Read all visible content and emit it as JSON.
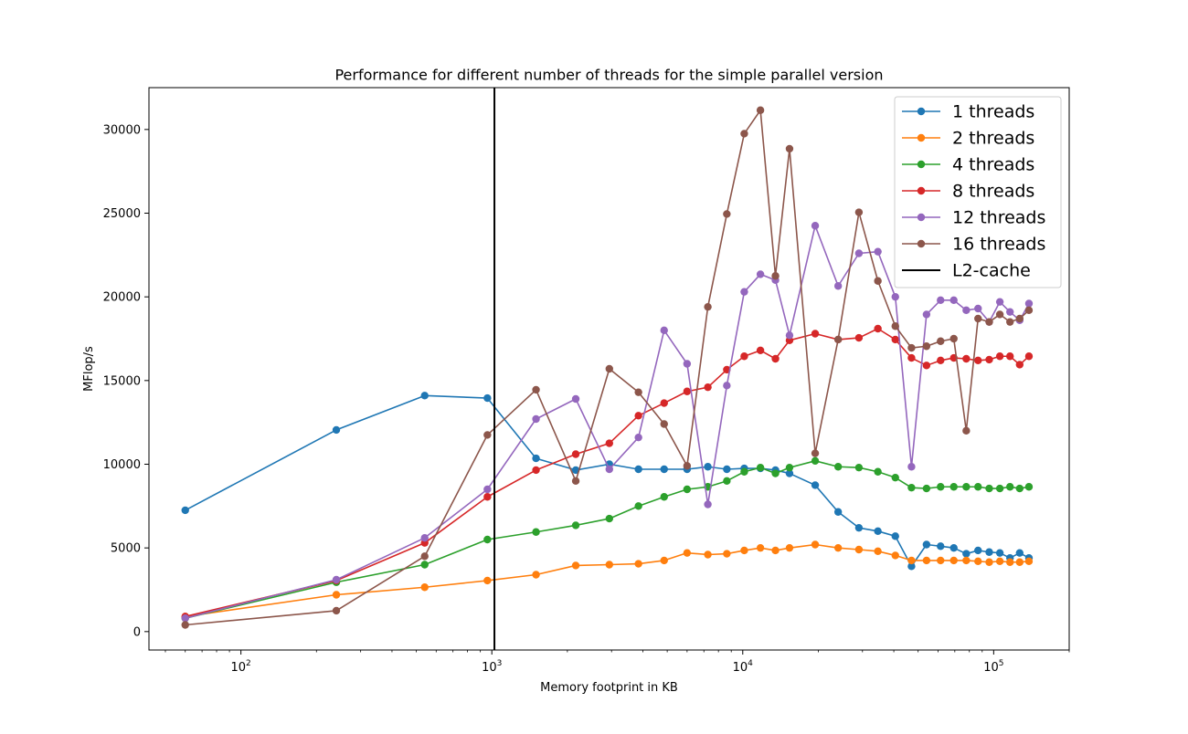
{
  "chart_data": {
    "type": "line",
    "title": "Performance for different number of threads for the simple parallel version",
    "xlabel": "Memory footprint in KB",
    "ylabel": "MFlop/s",
    "x_scale": "log",
    "xlim": [
      43,
      200000
    ],
    "ylim": [
      -1100,
      32500
    ],
    "x_ticks": [
      {
        "value": 100,
        "base": "10",
        "exp": "2"
      },
      {
        "value": 1000,
        "base": "10",
        "exp": "3"
      },
      {
        "value": 10000,
        "base": "10",
        "exp": "4"
      },
      {
        "value": 100000,
        "base": "10",
        "exp": "5"
      }
    ],
    "y_ticks": [
      {
        "value": 0,
        "label": "0"
      },
      {
        "value": 5000,
        "label": "5000"
      },
      {
        "value": 10000,
        "label": "10000"
      },
      {
        "value": 15000,
        "label": "15000"
      },
      {
        "value": 20000,
        "label": "20000"
      },
      {
        "value": 25000,
        "label": "25000"
      },
      {
        "value": 30000,
        "label": "30000"
      }
    ],
    "grid": false,
    "legend_position": "top-right",
    "x": [
      60,
      240,
      540,
      960,
      1500,
      2160,
      2940,
      3840,
      4860,
      6000,
      7260,
      8640,
      10140,
      11760,
      13500,
      15360,
      19440,
      24000,
      29040,
      34560,
      40560,
      47040,
      54000,
      61440,
      69360,
      77760,
      86640,
      96000,
      105840,
      116160,
      126960,
      138240
    ],
    "series": [
      {
        "name": "1 threads",
        "color": "#1f77b4",
        "values": [
          7250,
          12050,
          14100,
          13950,
          10350,
          9650,
          10000,
          9700,
          9700,
          9700,
          9850,
          9700,
          9750,
          9750,
          9650,
          9450,
          8750,
          7150,
          6200,
          6000,
          5700,
          3900,
          5200,
          5100,
          5000,
          4650,
          4850,
          4750,
          4700,
          4400,
          4700,
          4400
        ]
      },
      {
        "name": "2 threads",
        "color": "#ff7f0e",
        "values": [
          900,
          2200,
          2650,
          3050,
          3400,
          3950,
          4000,
          4050,
          4250,
          4700,
          4600,
          4650,
          4850,
          5000,
          4850,
          5000,
          5200,
          5000,
          4900,
          4800,
          4550,
          4250,
          4250,
          4250,
          4250,
          4250,
          4200,
          4150,
          4200,
          4150,
          4150,
          4200
        ]
      },
      {
        "name": "4 threads",
        "color": "#2ca02c",
        "values": [
          800,
          2950,
          4000,
          5500,
          5950,
          6350,
          6750,
          7500,
          8050,
          8500,
          8650,
          9000,
          9550,
          9800,
          9450,
          9800,
          10200,
          9850,
          9800,
          9550,
          9200,
          8600,
          8550,
          8650,
          8650,
          8650,
          8650,
          8550,
          8550,
          8650,
          8550,
          8650
        ]
      },
      {
        "name": "8 threads",
        "color": "#d62728",
        "values": [
          900,
          3050,
          5300,
          8050,
          9650,
          10600,
          11250,
          12900,
          13650,
          14350,
          14600,
          15650,
          16450,
          16800,
          16300,
          17400,
          17800,
          17450,
          17550,
          18100,
          17450,
          16350,
          15900,
          16200,
          16350,
          16300,
          16200,
          16250,
          16450,
          16450,
          15950,
          16450
        ]
      },
      {
        "name": "12 threads",
        "color": "#9467bd",
        "values": [
          800,
          3100,
          5600,
          8500,
          12700,
          13900,
          9700,
          11600,
          18000,
          16000,
          7600,
          14700,
          20300,
          21350,
          21000,
          17700,
          24250,
          20650,
          22600,
          22700,
          20000,
          9850,
          18950,
          19800,
          19800,
          19200,
          19300,
          18500,
          19700,
          19100,
          18600,
          19600
        ]
      },
      {
        "name": "16 threads",
        "color": "#8c564b",
        "values": [
          400,
          1250,
          4500,
          11750,
          14450,
          9000,
          15700,
          14300,
          12400,
          9900,
          19400,
          24950,
          29750,
          31150,
          21250,
          28850,
          10650,
          17450,
          25050,
          20950,
          18250,
          16950,
          17050,
          17350,
          17500,
          12000,
          18700,
          18500,
          18950,
          18500,
          18700,
          19200
        ]
      }
    ],
    "vlines": [
      {
        "name": "L2-cache",
        "color": "#000000",
        "x": 1024
      }
    ]
  }
}
